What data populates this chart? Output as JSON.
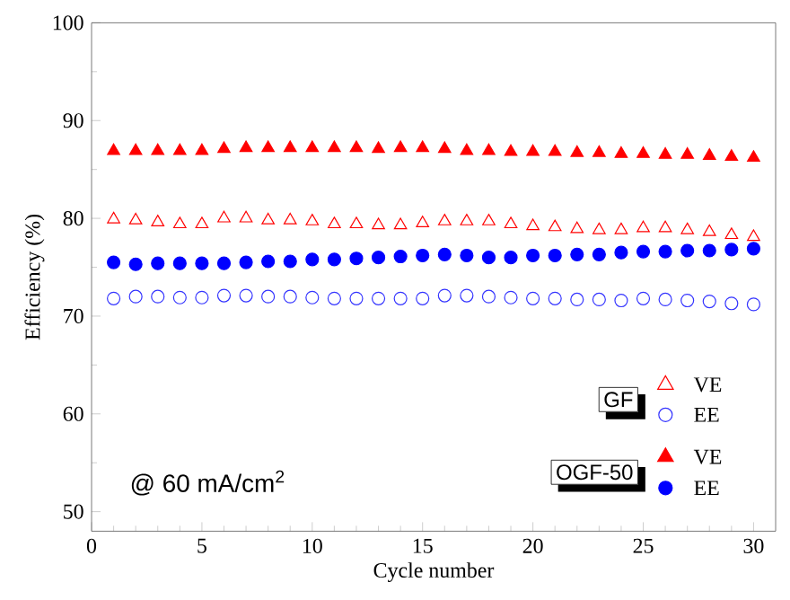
{
  "chart_data": {
    "type": "scatter",
    "xlabel": "Cycle number",
    "ylabel": "Efficiency (%)",
    "x": [
      1,
      2,
      3,
      4,
      5,
      6,
      7,
      8,
      9,
      10,
      11,
      12,
      13,
      14,
      15,
      16,
      17,
      18,
      19,
      20,
      21,
      22,
      23,
      24,
      25,
      26,
      27,
      28,
      29,
      30
    ],
    "series": [
      {
        "name": "VE",
        "color": "#ff0000",
        "marker": "triangle",
        "values": [
          79.9,
          79.8,
          79.6,
          79.4,
          79.4,
          80.0,
          80.0,
          79.8,
          79.8,
          79.7,
          79.4,
          79.4,
          79.3,
          79.3,
          79.5,
          79.7,
          79.7,
          79.7,
          79.4,
          79.2,
          79.1,
          78.9,
          78.8,
          78.8,
          79.0,
          79.0,
          78.8,
          78.6,
          78.3,
          78.1
        ]
      },
      {
        "name": "EE",
        "color": "#3333ff",
        "marker": "circle",
        "values": [
          71.8,
          72.0,
          72.0,
          71.9,
          71.9,
          72.1,
          72.1,
          72.0,
          72.0,
          71.9,
          71.8,
          71.8,
          71.8,
          71.8,
          71.8,
          72.1,
          72.1,
          72.0,
          71.9,
          71.8,
          71.8,
          71.7,
          71.7,
          71.6,
          71.8,
          71.7,
          71.6,
          71.5,
          71.3,
          71.2
        ]
      },
      {
        "name": "VE",
        "color": "#ff0000",
        "marker": "triangle",
        "values": [
          86.9,
          86.9,
          86.9,
          86.9,
          86.9,
          87.1,
          87.2,
          87.2,
          87.2,
          87.2,
          87.2,
          87.2,
          87.1,
          87.2,
          87.2,
          87.1,
          86.9,
          86.9,
          86.8,
          86.8,
          86.8,
          86.7,
          86.7,
          86.6,
          86.6,
          86.5,
          86.5,
          86.4,
          86.3,
          86.2
        ]
      },
      {
        "name": "EE",
        "color": "#0000ff",
        "marker": "circle",
        "values": [
          75.5,
          75.3,
          75.4,
          75.4,
          75.4,
          75.4,
          75.5,
          75.6,
          75.6,
          75.8,
          75.8,
          75.9,
          76.0,
          76.1,
          76.2,
          76.3,
          76.2,
          76.0,
          76.0,
          76.2,
          76.2,
          76.3,
          76.3,
          76.5,
          76.6,
          76.6,
          76.7,
          76.7,
          76.8,
          76.9
        ]
      }
    ],
    "annotations": [
      "GF",
      "OGF-50",
      "@ 60 mA/cm$^{2}$"
    ],
    "xlim": [
      0,
      31
    ],
    "ylim": [
      48,
      100
    ],
    "xticks": [
      0,
      5,
      10,
      15,
      20,
      25,
      30
    ],
    "yticks": [
      50,
      60,
      70,
      80,
      90,
      100
    ],
    "grid": false,
    "legend": "bottom right"
  }
}
